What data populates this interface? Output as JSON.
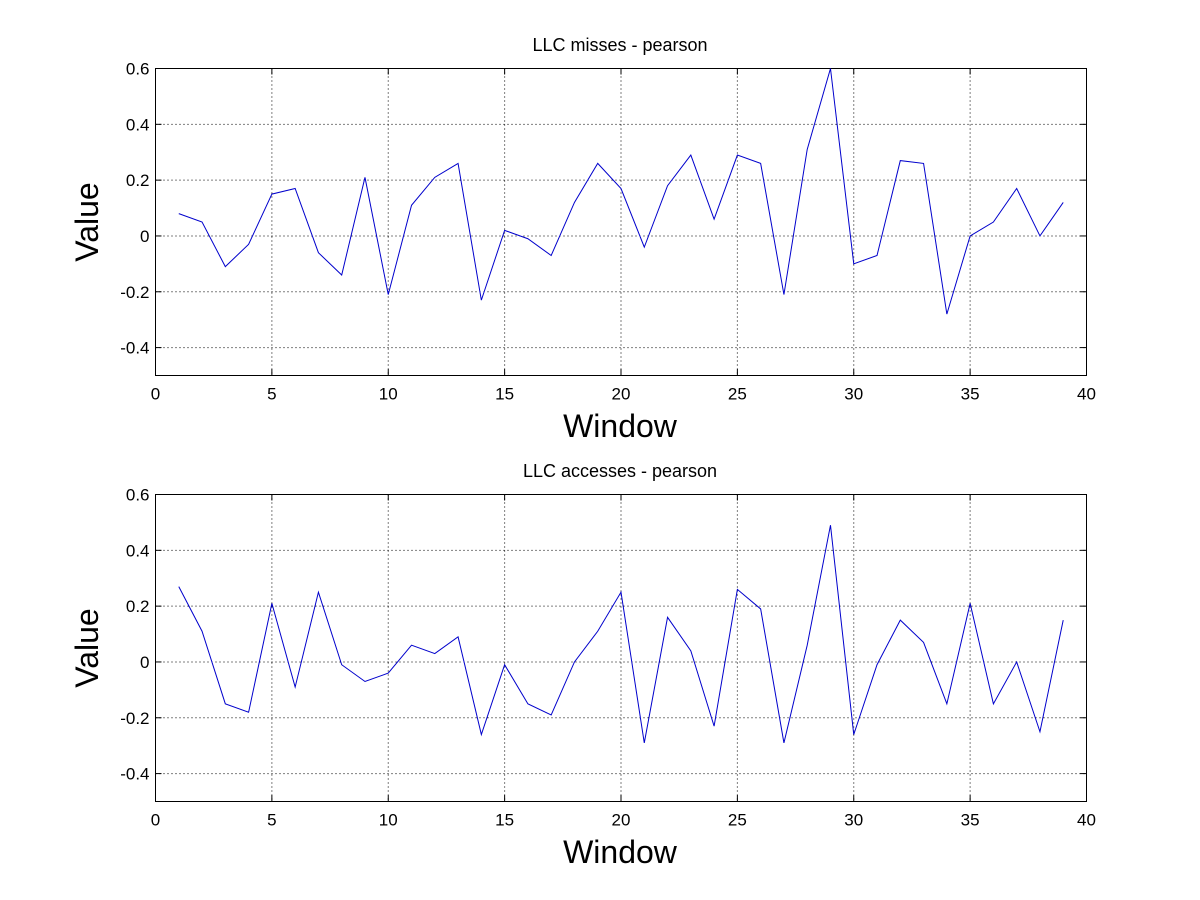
{
  "chart_data": [
    {
      "type": "line",
      "title": "LLC misses - pearson",
      "xlabel": "Window",
      "ylabel": "Value",
      "xlim": [
        0,
        40
      ],
      "ylim": [
        -0.5,
        0.6
      ],
      "xticks": [
        "0",
        "5",
        "10",
        "15",
        "20",
        "25",
        "30",
        "35",
        "40"
      ],
      "yticks": [
        "-0.4",
        "-0.2",
        "0",
        "0.2",
        "0.4",
        "0.6"
      ],
      "grid": true,
      "series_color": "#0000cc",
      "x": [
        1,
        2,
        3,
        4,
        5,
        6,
        7,
        8,
        9,
        10,
        11,
        12,
        13,
        14,
        15,
        16,
        17,
        18,
        19,
        20,
        21,
        22,
        23,
        24,
        25,
        26,
        27,
        28,
        29,
        30,
        31,
        32,
        33,
        34,
        35,
        36,
        37,
        38,
        39
      ],
      "y": [
        0.08,
        0.05,
        -0.11,
        -0.03,
        0.15,
        0.17,
        -0.06,
        -0.14,
        0.21,
        -0.21,
        0.11,
        0.21,
        0.26,
        -0.23,
        0.02,
        -0.01,
        -0.07,
        0.12,
        0.26,
        0.17,
        -0.04,
        0.18,
        0.29,
        0.06,
        0.29,
        0.26,
        -0.21,
        0.31,
        0.6,
        -0.1,
        -0.07,
        0.27,
        0.26,
        -0.28,
        0.0,
        0.05,
        0.17,
        0.0,
        0.12
      ]
    },
    {
      "type": "line",
      "title": "LLC accesses - pearson",
      "xlabel": "Window",
      "ylabel": "Value",
      "xlim": [
        0,
        40
      ],
      "ylim": [
        -0.5,
        0.6
      ],
      "xticks": [
        "0",
        "5",
        "10",
        "15",
        "20",
        "25",
        "30",
        "35",
        "40"
      ],
      "yticks": [
        "-0.4",
        "-0.2",
        "0",
        "0.2",
        "0.4",
        "0.6"
      ],
      "grid": true,
      "series_color": "#0000cc",
      "x": [
        1,
        2,
        3,
        4,
        5,
        6,
        7,
        8,
        9,
        10,
        11,
        12,
        13,
        14,
        15,
        16,
        17,
        18,
        19,
        20,
        21,
        22,
        23,
        24,
        25,
        26,
        27,
        28,
        29,
        30,
        31,
        32,
        33,
        34,
        35,
        36,
        37,
        38,
        39
      ],
      "y": [
        0.27,
        0.11,
        -0.15,
        -0.18,
        0.21,
        -0.09,
        0.25,
        -0.01,
        -0.07,
        -0.04,
        0.06,
        0.03,
        0.09,
        -0.26,
        -0.01,
        -0.15,
        -0.19,
        0.0,
        0.11,
        0.25,
        -0.29,
        0.16,
        0.04,
        -0.23,
        0.26,
        0.19,
        -0.29,
        0.06,
        0.49,
        -0.26,
        -0.01,
        0.15,
        0.07,
        -0.15,
        0.21,
        -0.15,
        0.0,
        -0.25,
        0.15
      ]
    }
  ]
}
